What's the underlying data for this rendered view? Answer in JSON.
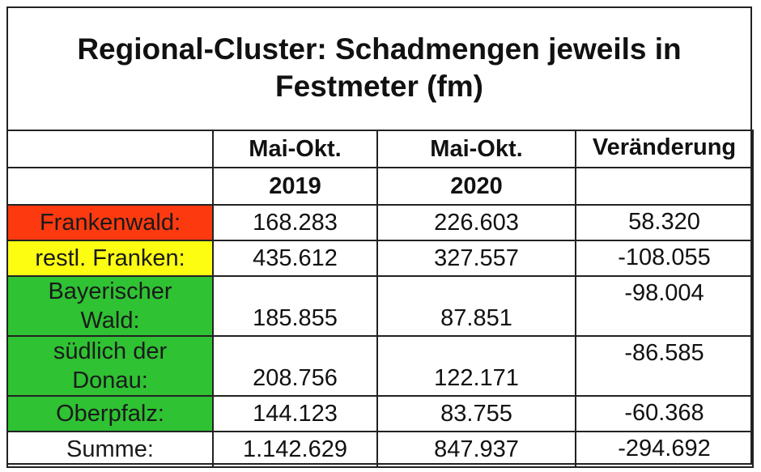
{
  "chart_data": {
    "type": "table",
    "title_line1": "Regional-Cluster: Schadmengen jeweils in",
    "title_line2": "Festmeter (fm)",
    "columns": [
      {
        "line1": "",
        "line2": ""
      },
      {
        "line1": "Mai-Okt.",
        "line2": "2019"
      },
      {
        "line1": "Mai-Okt.",
        "line2": "2020"
      },
      {
        "line1": "Veränderung",
        "line2": ""
      }
    ],
    "rows": [
      {
        "region_line1": "Frankenwald:",
        "region_line2": "",
        "v2019": "168.283",
        "v2020": "226.603",
        "change": "58.320",
        "color": "#fd3a0f"
      },
      {
        "region_line1": "restl. Franken:",
        "region_line2": "",
        "v2019": "435.612",
        "v2020": "327.557",
        "change": "-108.055",
        "color": "#fdfd12"
      },
      {
        "region_line1": "Bayerischer",
        "region_line2": "Wald:",
        "v2019": "185.855",
        "v2020": "87.851",
        "change": "-98.004",
        "color": "#2fc233"
      },
      {
        "region_line1": "südlich der",
        "region_line2": "Donau:",
        "v2019": "208.756",
        "v2020": "122.171",
        "change": "-86.585",
        "color": "#2fc233"
      },
      {
        "region_line1": "Oberpfalz:",
        "region_line2": "",
        "v2019": "144.123",
        "v2020": "83.755",
        "change": "-60.368",
        "color": "#2fc233"
      }
    ],
    "total": {
      "label": "Summe:",
      "v2019": "1.142.629",
      "v2020": "847.937",
      "change": "-294.692"
    }
  }
}
